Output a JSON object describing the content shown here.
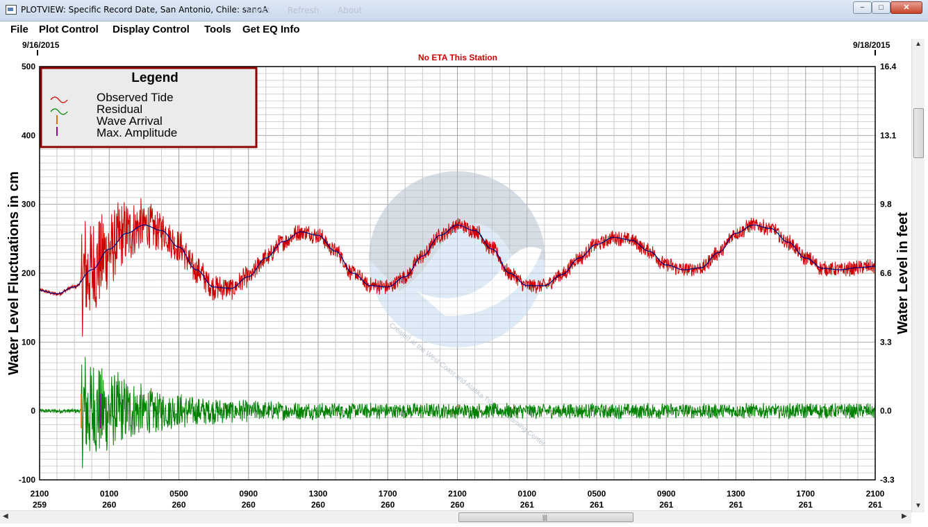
{
  "window": {
    "title": "PLOTVIEW: Specific Record Date, San Antonio, Chile: sanoA",
    "ghost_menu": [
      "Select",
      "Refresh",
      "About"
    ],
    "minimize": "−",
    "maximize": "□",
    "close": "✕"
  },
  "menu": [
    "File",
    "Plot Control",
    "Display Control",
    "Tools",
    "Get EQ Info"
  ],
  "plot": {
    "start_date": "9/16/2015",
    "end_date": "9/18/2015",
    "status_text": "No ETA This Station",
    "left_axis_label": "Water Level Fluctuations in cm",
    "right_axis_label": "Water Level in feet",
    "watermark_text": "Created at the West Coast and Alaska Tsunami Warning Center"
  },
  "legend": {
    "title": "Legend",
    "items": [
      {
        "label": "Observed Tide",
        "color": "#cc0000",
        "marker": "wave"
      },
      {
        "label": "Residual",
        "color": "#008000",
        "marker": "wave"
      },
      {
        "label": "Wave Arrival",
        "color": "#e07000",
        "marker": "bar"
      },
      {
        "label": "Max. Amplitude",
        "color": "#990099",
        "marker": "bar"
      }
    ]
  },
  "chart_data": {
    "type": "line",
    "x_ticks": [
      {
        "hour": "2100",
        "day": "259"
      },
      {
        "hour": "0100",
        "day": "260"
      },
      {
        "hour": "0500",
        "day": "260"
      },
      {
        "hour": "0900",
        "day": "260"
      },
      {
        "hour": "1300",
        "day": "260"
      },
      {
        "hour": "1700",
        "day": "260"
      },
      {
        "hour": "2100",
        "day": "260"
      },
      {
        "hour": "0100",
        "day": "261"
      },
      {
        "hour": "0500",
        "day": "261"
      },
      {
        "hour": "0900",
        "day": "261"
      },
      {
        "hour": "1300",
        "day": "261"
      },
      {
        "hour": "1700",
        "day": "261"
      },
      {
        "hour": "2100",
        "day": "261"
      }
    ],
    "x_range_hours": [
      0,
      48
    ],
    "y_left": {
      "label": "Water Level Fluctuations in cm",
      "range": [
        -100,
        500
      ],
      "ticks": [
        "500",
        "400",
        "300",
        "200",
        "100",
        "0",
        "-100"
      ]
    },
    "y_right": {
      "label": "Water Level in feet",
      "range": [
        -3.3,
        16.4
      ],
      "ticks": [
        "16.4",
        "13.1",
        "9.8",
        "6.6",
        "3.3",
        "0.0",
        "-3.3"
      ]
    },
    "grid": true,
    "legend_position": "top-left",
    "tide_hours": [
      0,
      1,
      2,
      3,
      4,
      5,
      6,
      7,
      8,
      9,
      10,
      11,
      12,
      13,
      14,
      15,
      16,
      17,
      18,
      19,
      20,
      21,
      22,
      23,
      24,
      25,
      26,
      27,
      28,
      29,
      30,
      31,
      32,
      33,
      34,
      35,
      36,
      37,
      38,
      39,
      40,
      41,
      42,
      43,
      44,
      45,
      46,
      47,
      48
    ],
    "tide_cm": [
      175,
      170,
      180,
      205,
      235,
      258,
      270,
      262,
      238,
      205,
      180,
      178,
      195,
      222,
      246,
      260,
      255,
      232,
      200,
      182,
      180,
      195,
      225,
      255,
      270,
      262,
      235,
      200,
      182,
      182,
      198,
      222,
      242,
      252,
      248,
      232,
      212,
      205,
      208,
      230,
      258,
      270,
      265,
      245,
      222,
      207,
      205,
      208,
      210
    ],
    "series": [
      {
        "name": "Observed Tide",
        "color": "#cc0000"
      },
      {
        "name": "Residual",
        "color": "#008000"
      }
    ],
    "wave_arrival_hour": 2.4,
    "max_amplitude_hour": 3.5,
    "residual_peak_amplitude_cm": 100,
    "residual_background_amplitude_cm": 12
  }
}
